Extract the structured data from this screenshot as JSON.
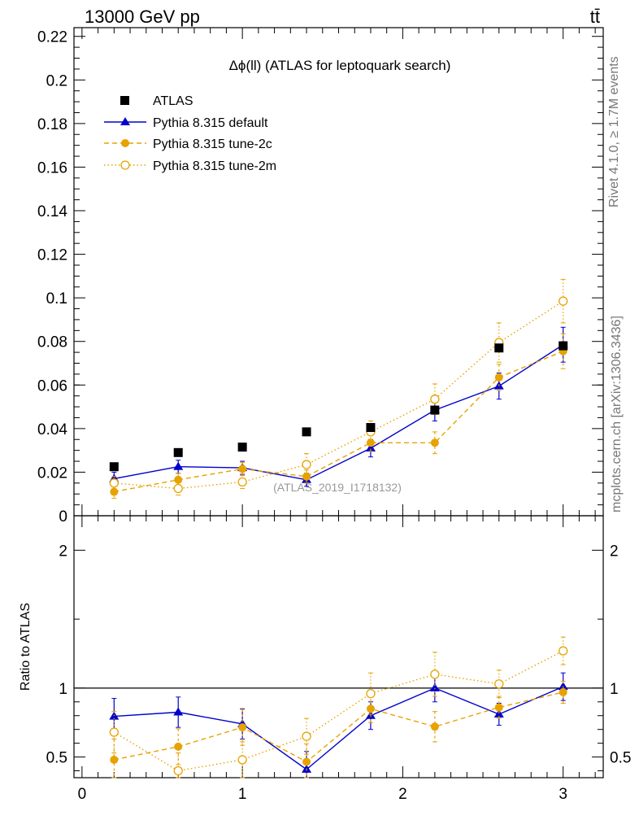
{
  "header": {
    "left": "13000 GeV pp",
    "right": "tt̄"
  },
  "side_labels": {
    "rivet": "Rivet 4.1.0, ≥ 1.7M events",
    "mcplots": "mcplots.cern.ch [arXiv:1306.3436]"
  },
  "chart_data": {
    "type": "scatter",
    "title": "Δϕ(ll) (ATLAS for leptoquark search)",
    "watermark": "(ATLAS_2019_I1718132)",
    "xlabel": "",
    "ylabel": "",
    "xlim": [
      -0.05,
      3.25
    ],
    "ylim": [
      0,
      0.224
    ],
    "x_ticks": [
      "0",
      "1",
      "2",
      "3"
    ],
    "y_ticks": [
      "0",
      "0.02",
      "0.04",
      "0.06",
      "0.08",
      "0.1",
      "0.12",
      "0.14",
      "0.16",
      "0.18",
      "0.2",
      "0.22"
    ],
    "x": [
      0.2,
      0.6,
      1.0,
      1.4,
      1.8,
      2.2,
      2.6,
      3.0
    ],
    "series": [
      {
        "name": "ATLAS",
        "color": "#000000",
        "marker": "square",
        "line": "none",
        "values": [
          0.0225,
          0.029,
          0.0315,
          0.0385,
          0.0405,
          0.0485,
          0.077,
          0.078
        ]
      },
      {
        "name": "Pythia 8.315 default",
        "color": "#0000cc",
        "marker": "triangle",
        "line": "solid",
        "values": [
          0.017,
          0.0225,
          0.022,
          0.0165,
          0.031,
          0.0485,
          0.0595,
          0.0785
        ],
        "errors": [
          0.003,
          0.003,
          0.003,
          0.003,
          0.004,
          0.005,
          0.006,
          0.008
        ]
      },
      {
        "name": "Pythia 8.315 tune-2c",
        "color": "#e8a200",
        "marker": "filled-circle",
        "line": "dashed",
        "values": [
          0.011,
          0.0165,
          0.0215,
          0.018,
          0.0335,
          0.0335,
          0.0635,
          0.0755
        ],
        "errors": [
          0.003,
          0.003,
          0.003,
          0.003,
          0.004,
          0.005,
          0.006,
          0.008
        ]
      },
      {
        "name": "Pythia 8.315 tune-2m",
        "color": "#e8a200",
        "marker": "open-circle",
        "line": "dotted",
        "values": [
          0.015,
          0.0125,
          0.0155,
          0.0235,
          0.0385,
          0.0535,
          0.0795,
          0.0985
        ],
        "errors": [
          0.003,
          0.003,
          0.003,
          0.005,
          0.005,
          0.007,
          0.009,
          0.01
        ]
      }
    ],
    "ratio": {
      "ylabel": "Ratio to ATLAS",
      "ylim": [
        0.35,
        2.25
      ],
      "y_ticks": [
        "0.5",
        "1",
        "2"
      ],
      "series": [
        {
          "name": "Pythia 8.315 default",
          "values": [
            0.795,
            0.825,
            0.74,
            0.41,
            0.8,
            1.0,
            0.81,
            1.01
          ],
          "errors": [
            0.13,
            0.11,
            0.11,
            0.13,
            0.1,
            0.1,
            0.08,
            0.1
          ]
        },
        {
          "name": "Pythia 8.315 tune-2c",
          "values": [
            0.48,
            0.575,
            0.715,
            0.465,
            0.85,
            0.72,
            0.86,
            0.97
          ],
          "errors": [
            0.15,
            0.13,
            0.13,
            0.13,
            0.1,
            0.11,
            0.08,
            0.08
          ]
        },
        {
          "name": "Pythia 8.315 tune-2m",
          "values": [
            0.68,
            0.4,
            0.48,
            0.65,
            0.96,
            1.1,
            1.03,
            1.27
          ],
          "errors": [
            0.15,
            0.13,
            0.13,
            0.13,
            0.15,
            0.16,
            0.1,
            0.1
          ]
        }
      ]
    }
  }
}
